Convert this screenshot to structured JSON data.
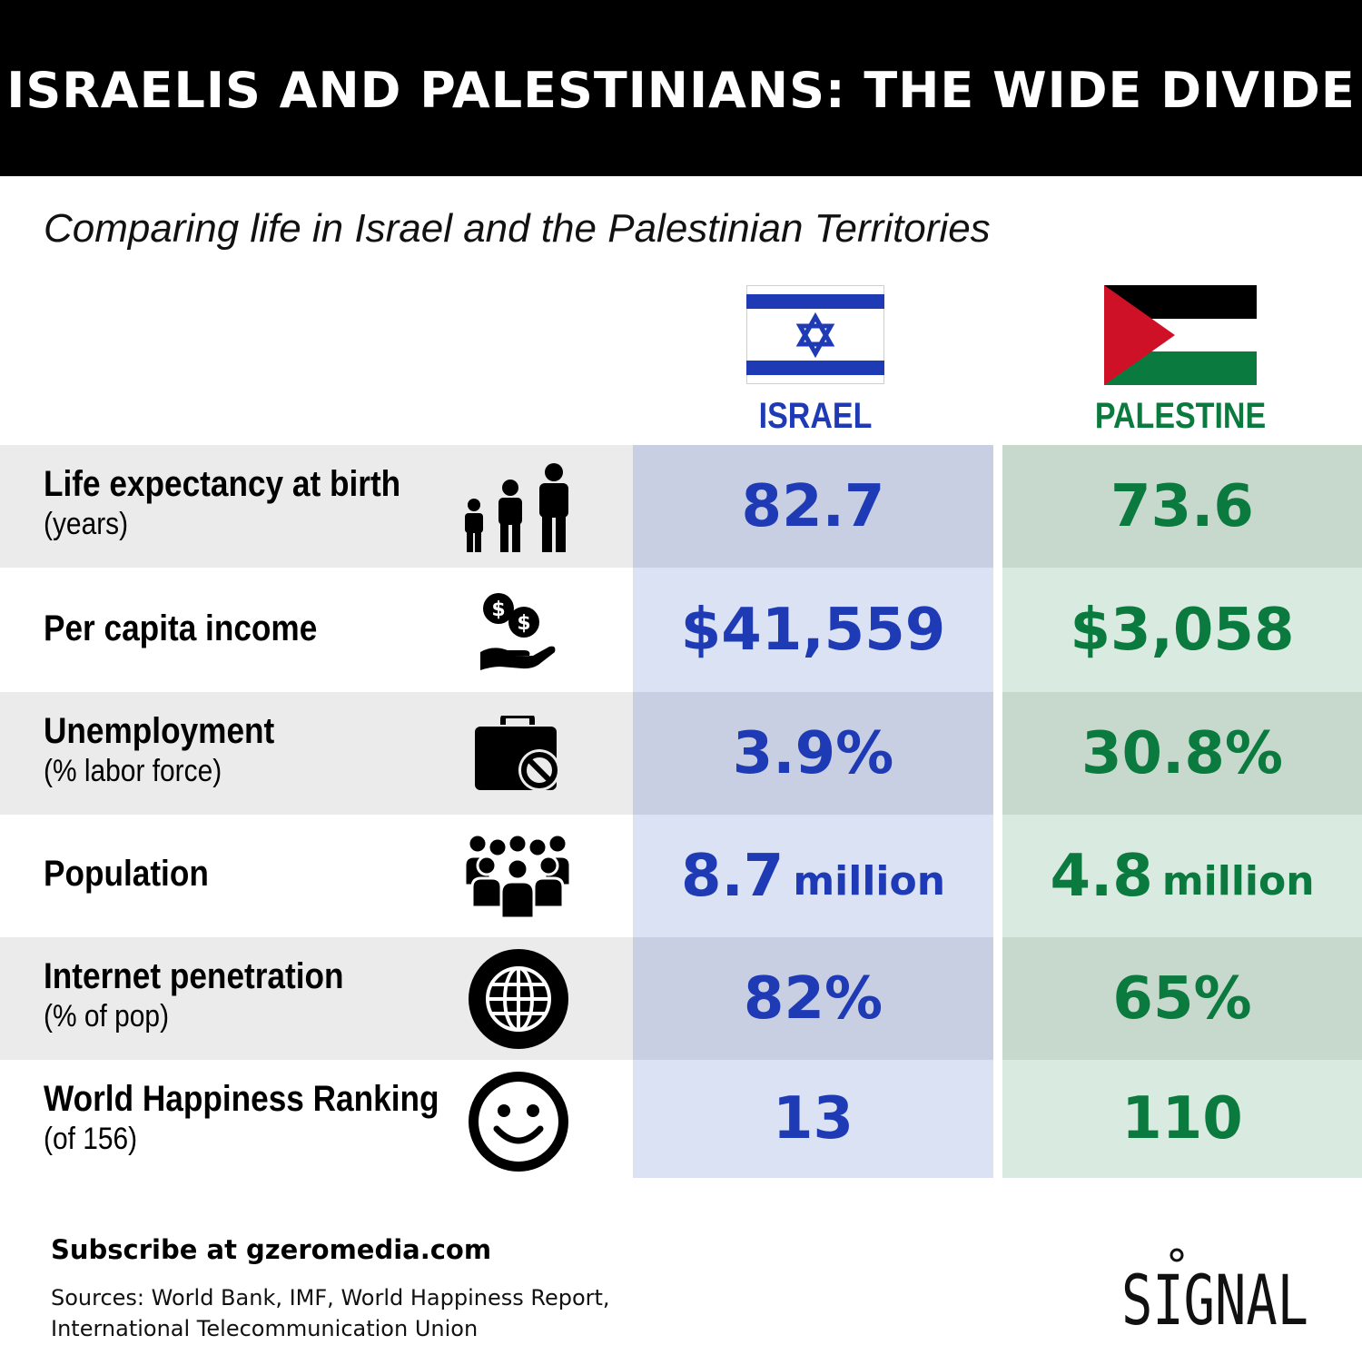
{
  "header": {
    "title": "ISRAELIS AND PALESTINIANS: THE WIDE DIVIDE"
  },
  "subtitle": "Comparing life in Israel and the Palestinian Territories",
  "columns": {
    "israel": {
      "label": "ISRAEL",
      "color": "#1e3bb5",
      "flag_icon": "israel-flag-icon"
    },
    "palestine": {
      "label": "PALESTINE",
      "color": "#0a7a3e",
      "flag_icon": "palestine-flag-icon"
    }
  },
  "rows": [
    {
      "label": "Life expectancy at birth",
      "sublabel": "(years)",
      "icon": "family-icon",
      "israel": "82.7",
      "palestine": "73.6"
    },
    {
      "label": "Per capita income",
      "sublabel": "",
      "icon": "money-hand-icon",
      "israel": "$41,559",
      "palestine": "$3,058"
    },
    {
      "label": "Unemployment",
      "sublabel": "(% labor force)",
      "icon": "briefcase-prohibited-icon",
      "israel": "3.9%",
      "palestine": "30.8%"
    },
    {
      "label": "Population",
      "sublabel": "",
      "icon": "crowd-icon",
      "israel": "8.7",
      "israel_unit": "million",
      "palestine": "4.8",
      "palestine_unit": "million"
    },
    {
      "label": "Internet penetration",
      "sublabel": "(% of pop)",
      "icon": "globe-icon",
      "israel": "82%",
      "palestine": "65%"
    },
    {
      "label": "World Happiness Ranking",
      "sublabel": "(of 156)",
      "icon": "smiley-icon",
      "israel": "13",
      "palestine": "110"
    }
  ],
  "footer": {
    "subscribe": "Subscribe at gzeromedia.com",
    "sources": "Sources: World Bank, IMF, World Happiness Report, International Telecommunication Union",
    "logo": "SIGNAL"
  }
}
